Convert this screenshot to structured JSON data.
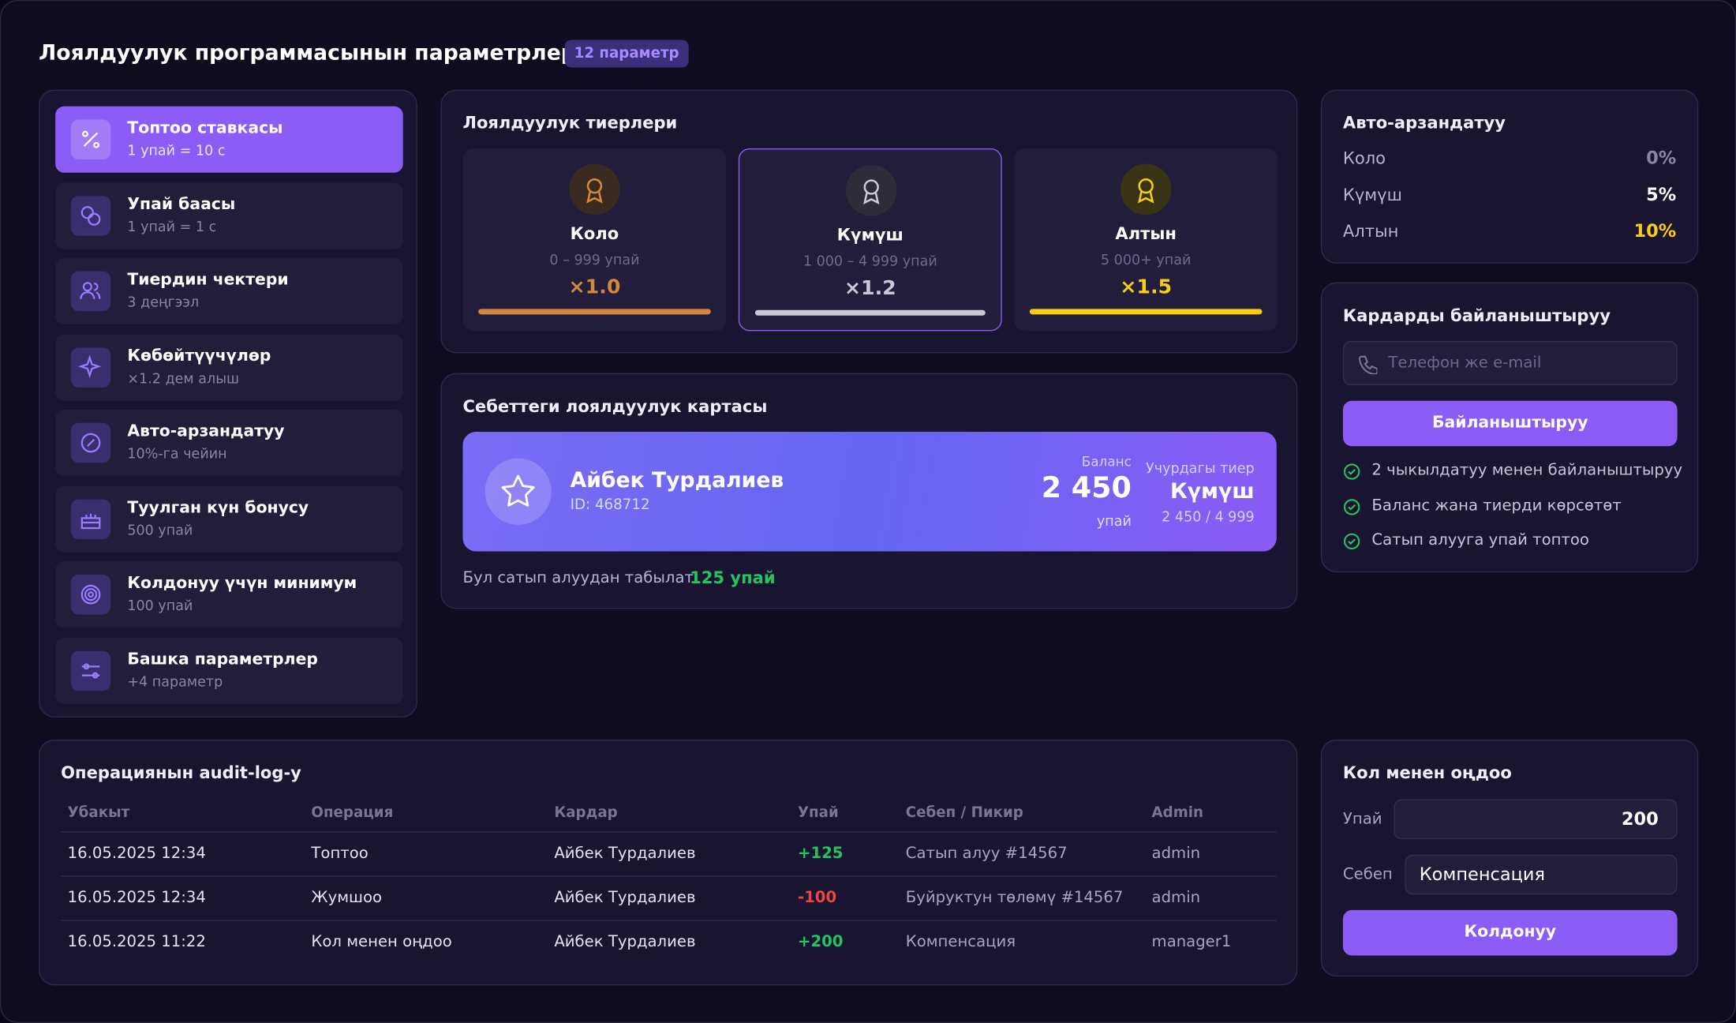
{
  "header": {
    "title": "Лоялдуулук программасынын параметрлери",
    "badge": "12 параметр"
  },
  "sidebar": [
    {
      "title": "Топтоо ставкасы",
      "sub": "1 упай = 10 с"
    },
    {
      "title": "Упай баасы",
      "sub": "1 упай = 1 с"
    },
    {
      "title": "Тиердин чектери",
      "sub": "3 деңгээл"
    },
    {
      "title": "Көбөйтүүчүлөр",
      "sub": "×1.2 дем алыш"
    },
    {
      "title": "Авто-арзандатуу",
      "sub": "10%-га чейин"
    },
    {
      "title": "Туулган күн бонусу",
      "sub": "500 упай"
    },
    {
      "title": "Колдонуу үчүн минимум",
      "sub": "100 упай"
    },
    {
      "title": "Башка параметрлер",
      "sub": "+4 параметр"
    }
  ],
  "tiers": {
    "title": "Лоялдуулук тиерлери",
    "items": [
      {
        "name": "Коло",
        "range": "0 – 999 упай",
        "mult": "×1.0"
      },
      {
        "name": "Күмүш",
        "range": "1 000 – 4 999 упай",
        "mult": "×1.2"
      },
      {
        "name": "Алтын",
        "range": "5 000+ упай",
        "mult": "×1.5"
      }
    ]
  },
  "auto": {
    "title": "Авто-арзандатуу",
    "rows": [
      {
        "label": "Коло",
        "value": "0%"
      },
      {
        "label": "Күмүш",
        "value": "5%"
      },
      {
        "label": "Алтын",
        "value": "10%"
      }
    ]
  },
  "card": {
    "title": "Себеттеги лоялдуулук картасы",
    "name": "Айбек Турдалиев",
    "id": "ID: 468712",
    "balance_label": "Баланс",
    "balance": "2 450",
    "balance_unit": "упай",
    "tier_label": "Учурдагы тиер",
    "tier": "Күмүш",
    "progress": "2 450 / 4 999",
    "earn_label": "Бул сатып алуудан табылат:",
    "earn_value": "125 упай"
  },
  "link": {
    "title": "Кардарды байланыштыруу",
    "placeholder": "Телефон же e-mail",
    "button": "Байланыштыруу",
    "features": [
      "2 чыкылдатуу менен байланыштыруу",
      "Баланс жана тиерди көрсөтөт",
      "Сатып алууга упай топтоо"
    ]
  },
  "audit": {
    "title": "Операциянын audit-log-у",
    "columns": [
      "Убакыт",
      "Операция",
      "Кардар",
      "Упай",
      "Себеп / Пикир",
      "Admin"
    ],
    "rows": [
      [
        "16.05.2025 12:34",
        "Топтоо",
        "Айбек Турдалиев",
        "+125",
        "Сатып алуу #14567",
        "admin"
      ],
      [
        "16.05.2025 12:34",
        "Жумшоо",
        "Айбек Турдалиев",
        "-100",
        "Буйруктун төлөмү #14567",
        "admin"
      ],
      [
        "16.05.2025 11:22",
        "Кол менен оңдоо",
        "Айбек Турдалиев",
        "+200",
        "Компенсация",
        "manager1"
      ]
    ]
  },
  "manual": {
    "title": "Кол менен оңдоо",
    "points_label": "Упай",
    "points_value": "200",
    "reason_label": "Себеп",
    "reason_value": "Компенсация",
    "button": "Колдонуу"
  }
}
